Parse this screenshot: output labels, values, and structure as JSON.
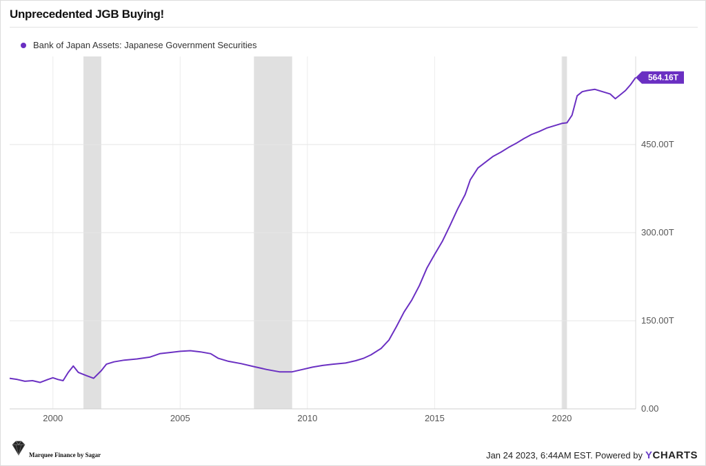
{
  "chart_data": {
    "type": "line",
    "title": "Unprecedented JGB Buying!",
    "series": [
      {
        "name": "Bank of Japan Assets: Japanese Government Securities",
        "color": "#6a2fc2",
        "last_value_label": "564.16T",
        "points": [
          [
            1998.3,
            52
          ],
          [
            1998.6,
            50
          ],
          [
            1998.9,
            47
          ],
          [
            1999.2,
            48
          ],
          [
            1999.5,
            45
          ],
          [
            1999.8,
            50
          ],
          [
            2000.0,
            53
          ],
          [
            2000.2,
            50
          ],
          [
            2000.4,
            48
          ],
          [
            2000.6,
            62
          ],
          [
            2000.8,
            73
          ],
          [
            2001.0,
            62
          ],
          [
            2001.3,
            57
          ],
          [
            2001.6,
            52
          ],
          [
            2001.9,
            65
          ],
          [
            2002.1,
            76
          ],
          [
            2002.4,
            80
          ],
          [
            2002.8,
            83
          ],
          [
            2003.3,
            85
          ],
          [
            2003.8,
            88
          ],
          [
            2004.2,
            94
          ],
          [
            2004.6,
            96
          ],
          [
            2005.0,
            98
          ],
          [
            2005.4,
            99
          ],
          [
            2005.8,
            97
          ],
          [
            2006.2,
            94
          ],
          [
            2006.5,
            86
          ],
          [
            2006.9,
            81
          ],
          [
            2007.4,
            77
          ],
          [
            2007.9,
            72
          ],
          [
            2008.4,
            67
          ],
          [
            2008.9,
            63
          ],
          [
            2009.4,
            63
          ],
          [
            2009.8,
            67
          ],
          [
            2010.2,
            71
          ],
          [
            2010.6,
            74
          ],
          [
            2011.0,
            76
          ],
          [
            2011.5,
            78
          ],
          [
            2011.9,
            82
          ],
          [
            2012.2,
            86
          ],
          [
            2012.5,
            92
          ],
          [
            2012.9,
            103
          ],
          [
            2013.2,
            117
          ],
          [
            2013.5,
            140
          ],
          [
            2013.8,
            165
          ],
          [
            2014.1,
            185
          ],
          [
            2014.4,
            210
          ],
          [
            2014.7,
            240
          ],
          [
            2015.0,
            263
          ],
          [
            2015.3,
            285
          ],
          [
            2015.6,
            312
          ],
          [
            2015.9,
            340
          ],
          [
            2016.2,
            365
          ],
          [
            2016.4,
            390
          ],
          [
            2016.7,
            410
          ],
          [
            2017.0,
            420
          ],
          [
            2017.3,
            430
          ],
          [
            2017.6,
            437
          ],
          [
            2017.9,
            445
          ],
          [
            2018.2,
            452
          ],
          [
            2018.5,
            460
          ],
          [
            2018.8,
            467
          ],
          [
            2019.1,
            472
          ],
          [
            2019.4,
            478
          ],
          [
            2019.7,
            482
          ],
          [
            2020.0,
            486
          ],
          [
            2020.2,
            487
          ],
          [
            2020.4,
            500
          ],
          [
            2020.6,
            533
          ],
          [
            2020.8,
            540
          ],
          [
            2021.0,
            542
          ],
          [
            2021.3,
            544
          ],
          [
            2021.6,
            540
          ],
          [
            2021.9,
            536
          ],
          [
            2022.1,
            528
          ],
          [
            2022.3,
            535
          ],
          [
            2022.5,
            542
          ],
          [
            2022.7,
            552
          ],
          [
            2022.9,
            564.16
          ]
        ]
      }
    ],
    "recessions": [
      [
        2001.2,
        2001.9
      ],
      [
        2007.9,
        2009.4
      ],
      [
        2020.0,
        2020.2
      ]
    ],
    "xlim": [
      1998.3,
      2022.9
    ],
    "ylim": [
      0,
      600
    ],
    "x_ticks": [
      2000,
      2005,
      2010,
      2015,
      2020
    ],
    "y_ticks": [
      {
        "value": 0,
        "label": "0.00"
      },
      {
        "value": 150,
        "label": "150.00T"
      },
      {
        "value": 300,
        "label": "300.00T"
      },
      {
        "value": 450,
        "label": "450.00T"
      }
    ],
    "grid": true,
    "legend_position": "top-left"
  },
  "footer": {
    "timestamp_text": "Jan 24 2023, 6:44AM EST. Powered by",
    "brand_y": "Y",
    "brand_rest": "CHARTS"
  },
  "watermark": {
    "text": "Marquee Finance by Sagar"
  }
}
